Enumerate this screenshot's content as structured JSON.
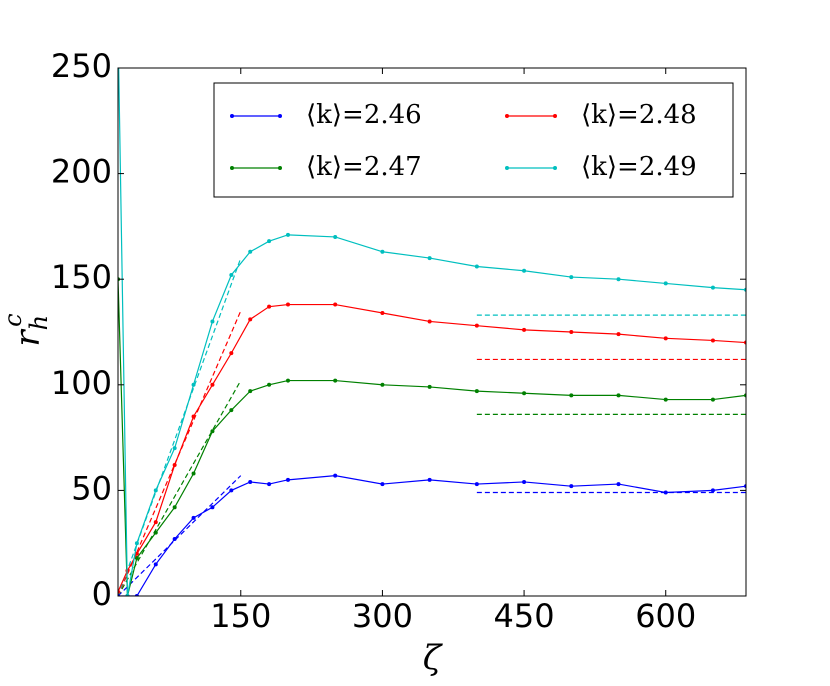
{
  "chart_data": {
    "type": "line",
    "xlabel": "ζ",
    "ylabel": {
      "base": "r",
      "sub": "h",
      "sup": "c"
    },
    "xlim": [
      20,
      685
    ],
    "ylim": [
      0,
      250
    ],
    "xticks": [
      150,
      300,
      450,
      600
    ],
    "yticks": [
      0,
      50,
      100,
      150,
      200,
      250
    ],
    "grid": false,
    "legend": "upper right",
    "legend_columns": 2,
    "x": [
      20,
      30,
      40,
      60,
      80,
      100,
      120,
      140,
      160,
      180,
      200,
      250,
      300,
      350,
      400,
      450,
      500,
      550,
      600,
      650,
      685
    ],
    "series": [
      {
        "name": "⟨k⟩=2.46",
        "color": "#0000ff",
        "values": [
          0,
          0,
          0,
          15,
          27,
          37,
          42,
          50,
          54,
          53,
          55,
          57,
          53,
          55,
          53,
          54,
          52,
          53,
          49,
          50,
          52
        ]
      },
      {
        "name": "⟨k⟩=2.47",
        "color": "#008000",
        "values": [
          150,
          0,
          18,
          30,
          42,
          58,
          78,
          88,
          97,
          100,
          102,
          102,
          100,
          99,
          97,
          96,
          95,
          95,
          93,
          93,
          95
        ]
      },
      {
        "name": "⟨k⟩=2.48",
        "color": "#ff0000",
        "values": [
          2,
          12,
          20,
          35,
          62,
          85,
          100,
          115,
          131,
          137,
          138,
          138,
          134,
          130,
          128,
          126,
          125,
          124,
          122,
          121,
          120
        ]
      },
      {
        "name": "⟨k⟩=2.49",
        "color": "#00bfbf",
        "values": [
          270,
          0,
          25,
          50,
          70,
          100,
          130,
          152,
          163,
          168,
          171,
          170,
          163,
          160,
          156,
          154,
          151,
          150,
          148,
          146,
          145
        ]
      }
    ],
    "fits": [
      {
        "color": "#0000ff",
        "x": [
          20,
          150
        ],
        "values": [
          0,
          57
        ]
      },
      {
        "color": "#008000",
        "x": [
          20,
          150
        ],
        "values": [
          0,
          102
        ]
      },
      {
        "color": "#ff0000",
        "x": [
          20,
          150
        ],
        "values": [
          0,
          135
        ]
      },
      {
        "color": "#00bfbf",
        "x": [
          20,
          150
        ],
        "values": [
          0,
          160
        ]
      }
    ],
    "plateaus": [
      {
        "color": "#0000ff",
        "x": [
          400,
          685
        ],
        "values": [
          49,
          49
        ]
      },
      {
        "color": "#008000",
        "x": [
          400,
          685
        ],
        "values": [
          86,
          86
        ]
      },
      {
        "color": "#ff0000",
        "x": [
          400,
          685
        ],
        "values": [
          112,
          112
        ]
      },
      {
        "color": "#00bfbf",
        "x": [
          400,
          685
        ],
        "values": [
          133,
          133
        ]
      }
    ]
  }
}
